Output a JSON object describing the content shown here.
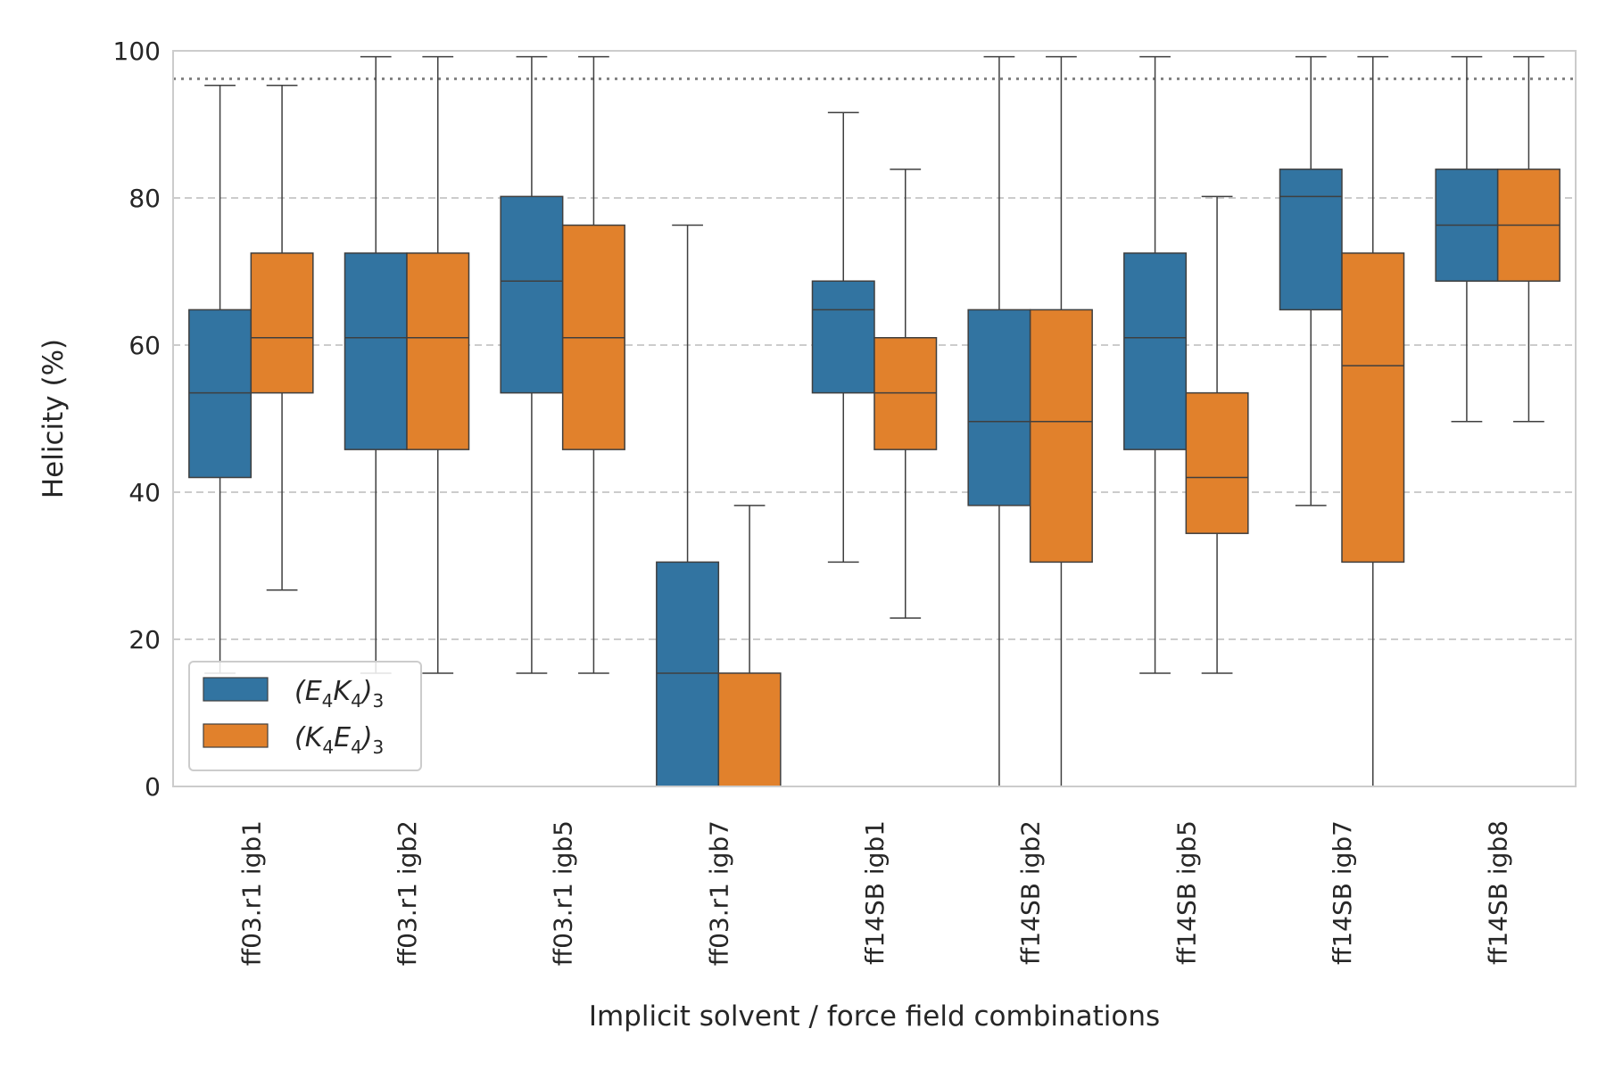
{
  "chart_data": {
    "type": "box",
    "xlabel": "Implicit solvent / force field combinations",
    "ylabel": "Helicity (%)",
    "ylim": [
      0,
      100
    ],
    "yticks": [
      0,
      20,
      40,
      60,
      80,
      100
    ],
    "grid": "horizontal-dashed",
    "reference_line": {
      "y": 96.2,
      "style": "dotted"
    },
    "legend_position": "bottom-left",
    "categories": [
      "ff03.r1 igb1",
      "ff03.r1 igb2",
      "ff03.r1 igb5",
      "ff03.r1 igb7",
      "ff14SB igb1",
      "ff14SB igb2",
      "ff14SB igb5",
      "ff14SB igb7",
      "ff14SB igb8"
    ],
    "series": [
      {
        "name": "(E4K4)3",
        "legend_main": [
          "(E",
          "K",
          ")"
        ],
        "legend_subs": [
          "4",
          "4",
          "3"
        ],
        "color": "#3274a1",
        "boxes": [
          {
            "whislo": 15.4,
            "q1": 42.0,
            "med": 53.5,
            "q3": 64.8,
            "whishi": 95.3
          },
          {
            "whislo": 15.4,
            "q1": 45.8,
            "med": 61.0,
            "q3": 72.5,
            "whishi": 99.2
          },
          {
            "whislo": 15.4,
            "q1": 53.5,
            "med": 68.7,
            "q3": 80.2,
            "whishi": 99.2
          },
          {
            "whislo": 0.0,
            "q1": 0.0,
            "med": 15.4,
            "q3": 30.5,
            "whishi": 76.3
          },
          {
            "whislo": 30.5,
            "q1": 53.5,
            "med": 64.8,
            "q3": 68.7,
            "whishi": 91.6
          },
          {
            "whislo": 0.0,
            "q1": 38.2,
            "med": 49.6,
            "q3": 64.8,
            "whishi": 99.2
          },
          {
            "whislo": 15.4,
            "q1": 45.8,
            "med": 61.0,
            "q3": 72.5,
            "whishi": 99.2
          },
          {
            "whislo": 38.2,
            "q1": 64.8,
            "med": 80.2,
            "q3": 83.9,
            "whishi": 99.2
          },
          {
            "whislo": 49.6,
            "q1": 68.7,
            "med": 76.3,
            "q3": 83.9,
            "whishi": 99.2
          }
        ]
      },
      {
        "name": "(K4E4)3",
        "legend_main": [
          "(K",
          "E",
          ")"
        ],
        "legend_subs": [
          "4",
          "4",
          "3"
        ],
        "color": "#e1812c",
        "boxes": [
          {
            "whislo": 26.7,
            "q1": 53.5,
            "med": 61.0,
            "q3": 72.5,
            "whishi": 95.3
          },
          {
            "whislo": 15.4,
            "q1": 45.8,
            "med": 61.0,
            "q3": 72.5,
            "whishi": 99.2
          },
          {
            "whislo": 15.4,
            "q1": 45.8,
            "med": 61.0,
            "q3": 76.3,
            "whishi": 99.2
          },
          {
            "whislo": 0.0,
            "q1": 0.0,
            "med": 0.0,
            "q3": 15.4,
            "whishi": 38.2
          },
          {
            "whislo": 22.9,
            "q1": 45.8,
            "med": 53.5,
            "q3": 61.0,
            "whishi": 83.9
          },
          {
            "whislo": 0.0,
            "q1": 30.5,
            "med": 49.6,
            "q3": 64.8,
            "whishi": 99.2
          },
          {
            "whislo": 15.4,
            "q1": 34.4,
            "med": 42.0,
            "q3": 53.5,
            "whishi": 80.2
          },
          {
            "whislo": 0.0,
            "q1": 30.5,
            "med": 57.2,
            "q3": 72.5,
            "whishi": 99.2
          },
          {
            "whislo": 49.6,
            "q1": 68.7,
            "med": 76.3,
            "q3": 83.9,
            "whishi": 99.2
          }
        ]
      }
    ]
  }
}
